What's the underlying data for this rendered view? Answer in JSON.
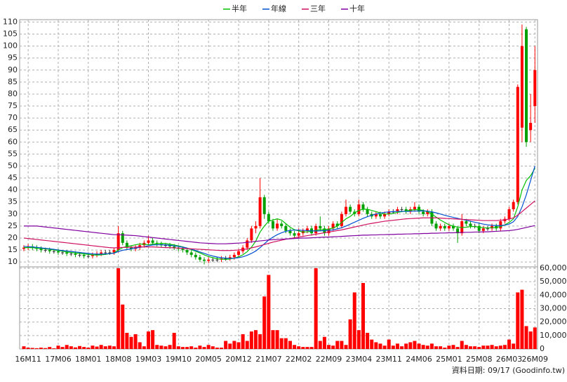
{
  "chart_data": [
    {
      "type": "candlestick",
      "categories": [
        null,
        "16M11",
        null,
        null,
        null,
        null,
        null,
        null,
        "17M06",
        null,
        null,
        null,
        null,
        null,
        null,
        "18M01",
        null,
        null,
        null,
        null,
        null,
        null,
        "18M08",
        null,
        null,
        null,
        null,
        null,
        null,
        "19M03",
        null,
        null,
        null,
        null,
        null,
        null,
        "19M10",
        null,
        null,
        null,
        null,
        null,
        null,
        "20M05",
        null,
        null,
        null,
        null,
        null,
        null,
        "20M12",
        null,
        null,
        null,
        null,
        null,
        null,
        "21M07",
        null,
        null,
        null,
        null,
        null,
        null,
        "22M02",
        null,
        null,
        null,
        null,
        null,
        null,
        "22M09",
        null,
        null,
        null,
        null,
        null,
        null,
        "23M04",
        null,
        null,
        null,
        null,
        null,
        null,
        "23M11",
        null,
        null,
        null,
        null,
        null,
        null,
        "24M06",
        null,
        null,
        null,
        null,
        null,
        null,
        "25M01",
        null,
        null,
        null,
        null,
        null,
        null,
        "25M08",
        null,
        null,
        null,
        null,
        null,
        null,
        "26M03",
        null,
        null,
        null,
        null,
        null,
        "26M09"
      ],
      "open": [
        15.5,
        16,
        16.5,
        16,
        15.5,
        15,
        15,
        14.5,
        14.5,
        14,
        14,
        13.5,
        13.5,
        13,
        13,
        12.5,
        12.5,
        13,
        13.5,
        14,
        14,
        14,
        15,
        22,
        18,
        16,
        15.5,
        16,
        17,
        18,
        19,
        18,
        17.5,
        17,
        17,
        16.5,
        16,
        15.5,
        15,
        14,
        13,
        12,
        11,
        10.5,
        11,
        11,
        11,
        11.5,
        11.5,
        12,
        13,
        14.5,
        16,
        19,
        24,
        25,
        37,
        30,
        27,
        24,
        26,
        25,
        23,
        22,
        21,
        22,
        23,
        24,
        22,
        25,
        24,
        22,
        24,
        26,
        25,
        30,
        33,
        31,
        30,
        34,
        32,
        30,
        29,
        30,
        29,
        30,
        31,
        31,
        32,
        32,
        31,
        32,
        33,
        31,
        30,
        31,
        26,
        24,
        25,
        24,
        25,
        24,
        22,
        27,
        26,
        25,
        25,
        23,
        24,
        24,
        25,
        24,
        27,
        28,
        32,
        35,
        66,
        107,
        65,
        75
      ],
      "high": [
        17,
        17.5,
        17.5,
        17,
        16.5,
        16,
        16,
        15.5,
        15.5,
        15,
        15,
        14.5,
        14.5,
        14,
        14,
        13.5,
        14,
        14.5,
        15,
        15,
        15,
        16,
        25,
        23,
        19,
        17,
        17,
        18,
        19,
        21,
        20,
        19,
        18.5,
        18,
        18,
        17.5,
        17,
        16.5,
        16,
        15,
        14,
        13,
        12,
        12,
        12,
        12,
        12.5,
        12.5,
        13,
        14,
        15.5,
        17,
        20,
        25,
        27,
        45,
        38,
        31,
        28,
        28,
        27,
        26,
        24,
        23,
        24,
        24,
        25,
        25,
        26,
        29,
        25,
        25,
        27,
        27,
        31,
        36,
        34,
        32,
        36,
        35,
        33,
        31,
        31,
        31,
        31,
        32,
        32,
        33,
        33,
        33,
        33,
        35,
        34,
        32,
        32,
        32,
        27,
        26,
        26,
        26,
        26,
        25,
        30,
        28,
        27,
        26,
        26,
        25,
        25,
        26,
        26,
        28,
        29,
        33,
        36,
        84,
        109,
        108,
        80,
        100
      ],
      "low": [
        14.5,
        15,
        15,
        14.5,
        14,
        14,
        13.5,
        13.5,
        13,
        13,
        12.5,
        12.5,
        12,
        12,
        11.5,
        11.5,
        11.5,
        12,
        12.5,
        13,
        13,
        13,
        14,
        17,
        15,
        14.5,
        14.5,
        15,
        16,
        17,
        17,
        16.5,
        16,
        16,
        15.5,
        15,
        14.5,
        14,
        13,
        12,
        11,
        10,
        9,
        9.5,
        10,
        10,
        10,
        10.5,
        10.5,
        11,
        12,
        13.5,
        15,
        18,
        22,
        24,
        28,
        26,
        23,
        23,
        24,
        22,
        21,
        20,
        20,
        21,
        22,
        21,
        21,
        23,
        21,
        21,
        23,
        24,
        24,
        29,
        30,
        29,
        29,
        31,
        29,
        28,
        28,
        28,
        28,
        29,
        30,
        30,
        31,
        30,
        30,
        31,
        30,
        29,
        29,
        25,
        23,
        23,
        23,
        23,
        23,
        18,
        21,
        25,
        24,
        24,
        22,
        22,
        23,
        23,
        23,
        23,
        26,
        27,
        31,
        34,
        60,
        58,
        60,
        68
      ],
      "close": [
        16,
        16.5,
        16,
        15.5,
        15,
        15,
        14.5,
        14.5,
        14,
        14,
        13.5,
        13.5,
        13,
        13,
        12.5,
        12.5,
        13,
        13.5,
        14,
        14,
        14,
        15,
        22,
        18,
        16,
        15.5,
        16,
        17,
        18,
        19,
        18,
        17.5,
        17,
        17,
        16.5,
        16,
        15.5,
        15,
        14,
        13,
        12,
        11,
        10.5,
        11,
        11,
        11,
        11.5,
        11.5,
        12,
        13,
        14.5,
        16,
        19,
        24,
        25,
        37,
        30,
        27,
        24,
        26,
        25,
        23,
        22,
        21,
        22,
        23,
        24,
        22,
        25,
        24,
        22,
        24,
        26,
        25,
        30,
        33,
        31,
        30,
        34,
        32,
        30,
        29,
        30,
        29,
        30,
        31,
        31,
        32,
        32,
        31,
        32,
        33,
        31,
        30,
        31,
        26,
        24,
        25,
        24,
        25,
        24,
        22,
        27,
        26,
        25,
        25,
        23,
        24,
        24,
        25,
        24,
        27,
        28,
        32,
        35,
        83,
        100,
        60,
        68,
        90
      ],
      "up_color": "#ff0000",
      "down_color": "#00a000",
      "series": [
        {
          "name": "半年",
          "color": "#00c000",
          "values": [
            16,
            16,
            16,
            15.8,
            15.7,
            15.5,
            15.3,
            15,
            14.8,
            14.5,
            14.2,
            14,
            13.8,
            13.6,
            13.4,
            13.2,
            13,
            12.9,
            13,
            13.2,
            13.5,
            13.8,
            15,
            16,
            16.5,
            16.8,
            17.2,
            17.5,
            17.4,
            17.2,
            17.5,
            17.6,
            17.8,
            17.7,
            17.4,
            17.1,
            16.7,
            16.3,
            15.8,
            15.2,
            14.5,
            13.8,
            13,
            12.3,
            11.8,
            11.4,
            11.2,
            11.1,
            11.3,
            11.6,
            12.2,
            13,
            14.3,
            16.2,
            18.7,
            22.5,
            25,
            27,
            27.5,
            28,
            27.5,
            26,
            24.5,
            23.5,
            23,
            22.5,
            22.6,
            22.8,
            23.2,
            23.5,
            23.5,
            23.7,
            24.2,
            25,
            26.5,
            28,
            29,
            30.5,
            31.5,
            32,
            32,
            31.5,
            31,
            30.5,
            30,
            30,
            30.3,
            30.7,
            31,
            31.3,
            31.6,
            31.8,
            31.8,
            31.5,
            31,
            30,
            28.7,
            27.5,
            26.5,
            25.5,
            25,
            24.5,
            24.4,
            24.5,
            24.8,
            24.8,
            24.5,
            24.3,
            24.2,
            24.3,
            24.4,
            24.8,
            25.5,
            26.5,
            28,
            33,
            40,
            44,
            46,
            49
          ]
        },
        {
          "name": "年線",
          "color": "#0050d0",
          "values": [
            16.5,
            16.4,
            16.3,
            16.1,
            15.9,
            15.7,
            15.5,
            15.3,
            15,
            14.8,
            14.6,
            14.4,
            14.2,
            14,
            13.8,
            13.6,
            13.4,
            13.3,
            13.3,
            13.4,
            13.5,
            13.7,
            14.4,
            14.9,
            15.2,
            15.5,
            15.8,
            16.1,
            16.4,
            16.8,
            17.1,
            17.2,
            17.2,
            17.1,
            17,
            16.8,
            16.5,
            16.2,
            15.8,
            15.3,
            14.8,
            14.2,
            13.6,
            13,
            12.5,
            12.1,
            11.8,
            11.6,
            11.5,
            11.6,
            11.8,
            12.2,
            12.8,
            13.6,
            14.6,
            16,
            17.6,
            19.2,
            20.4,
            21.4,
            22.2,
            22.8,
            23.2,
            23.3,
            23.3,
            23.2,
            23.1,
            23,
            22.9,
            23,
            23.1,
            23.2,
            23.4,
            23.8,
            24.3,
            25,
            25.8,
            26.6,
            27.4,
            28.2,
            28.9,
            29.5,
            30,
            30.4,
            30.7,
            30.9,
            31,
            31.1,
            31.1,
            31.1,
            31.1,
            31.2,
            31.3,
            31.3,
            31.2,
            30.9,
            30.5,
            30,
            29.5,
            29,
            28.6,
            28.2,
            27.8,
            27.4,
            27,
            26.6,
            26.2,
            25.8,
            25.5,
            25.3,
            25.2,
            25.2,
            25.4,
            25.8,
            26.8,
            29,
            33,
            38,
            44,
            50
          ]
        },
        {
          "name": "三年",
          "color": "#d01060",
          "values": [
            20,
            19.8,
            19.6,
            19.4,
            19.2,
            19,
            18.8,
            18.6,
            18.4,
            18.2,
            18,
            17.8,
            17.6,
            17.4,
            17.2,
            17,
            16.8,
            16.6,
            16.4,
            16.2,
            16,
            15.9,
            16,
            16.1,
            16.1,
            16.2,
            16.2,
            16.3,
            16.3,
            16.3,
            16.3,
            16.2,
            16.1,
            16,
            16,
            15.9,
            15.8,
            15.7,
            15.6,
            15.5,
            15.4,
            15.3,
            15.2,
            15.1,
            15,
            14.9,
            14.8,
            14.8,
            14.8,
            14.9,
            15,
            15.2,
            15.5,
            15.9,
            16.3,
            16.8,
            17.3,
            17.8,
            18.3,
            18.7,
            19.1,
            19.5,
            19.8,
            20.1,
            20.4,
            20.7,
            21,
            21.3,
            21.6,
            21.9,
            22.2,
            22.5,
            22.8,
            23.1,
            23.4,
            23.8,
            24.2,
            24.6,
            25,
            25.4,
            25.8,
            26.1,
            26.4,
            26.7,
            27,
            27.2,
            27.4,
            27.6,
            27.8,
            28,
            28.1,
            28.2,
            28.3,
            28.4,
            28.4,
            28.4,
            28.4,
            28.3,
            28.2,
            28.1,
            28,
            27.9,
            27.8,
            27.7,
            27.6,
            27.5,
            27.4,
            27.3,
            27.3,
            27.3,
            27.3,
            27.4,
            27.6,
            27.9,
            28.4,
            29.5,
            31,
            32.5,
            34,
            35.5
          ]
        },
        {
          "name": "十年",
          "color": "#8000a0",
          "values": [
            25,
            25,
            25,
            25,
            24.8,
            24.6,
            24.4,
            24.2,
            24,
            23.8,
            23.6,
            23.4,
            23.2,
            23,
            22.8,
            22.6,
            22.4,
            22.2,
            22,
            21.8,
            21.6,
            21.4,
            21.4,
            21.3,
            21.2,
            21.1,
            21,
            20.8,
            20.6,
            20.4,
            20.2,
            20,
            19.8,
            19.6,
            19.4,
            19.2,
            19,
            18.8,
            18.6,
            18.4,
            18.2,
            18,
            17.9,
            17.8,
            17.7,
            17.6,
            17.6,
            17.6,
            17.7,
            17.8,
            17.9,
            18,
            18.2,
            18.4,
            18.6,
            18.8,
            19,
            19.2,
            19.3,
            19.4,
            19.5,
            19.6,
            19.7,
            19.8,
            19.9,
            20,
            20,
            20.1,
            20.2,
            20.3,
            20.4,
            20.4,
            20.5,
            20.6,
            20.7,
            20.8,
            20.9,
            21,
            21.1,
            21.2,
            21.2,
            21.3,
            21.3,
            21.4,
            21.4,
            21.5,
            21.5,
            21.6,
            21.6,
            21.7,
            21.7,
            21.8,
            21.8,
            21.9,
            21.9,
            22,
            22,
            22.1,
            22.1,
            22.2,
            22.2,
            22.3,
            22.3,
            22.4,
            22.4,
            22.5,
            22.5,
            22.6,
            22.6,
            22.7,
            22.8,
            22.9,
            23,
            23.1,
            23.3,
            23.6,
            24,
            24.4,
            24.8,
            25.2
          ]
        }
      ],
      "ylim": [
        8,
        111
      ],
      "yticks": [
        10,
        15,
        20,
        25,
        30,
        35,
        40,
        45,
        50,
        55,
        60,
        65,
        70,
        75,
        80,
        85,
        90,
        95,
        100,
        105,
        110
      ],
      "grid": true
    },
    {
      "type": "bar",
      "color": "#ff0000",
      "values": [
        2000,
        1000,
        800,
        600,
        1000,
        700,
        1500,
        500,
        2500,
        1500,
        3000,
        2000,
        1200,
        2200,
        1500,
        1000,
        2500,
        1800,
        3000,
        2000,
        2500,
        2000,
        60000,
        33000,
        12000,
        9000,
        11000,
        5000,
        2000,
        13000,
        14000,
        3000,
        2500,
        2000,
        3000,
        12000,
        2000,
        1500,
        1500,
        2000,
        1000,
        2500,
        1500,
        3000,
        2000,
        1000,
        1000,
        6000,
        4000,
        6000,
        5000,
        11000,
        6000,
        13000,
        14000,
        11000,
        39000,
        55000,
        14000,
        14000,
        8000,
        8000,
        6000,
        3000,
        2000,
        1500,
        1500,
        1500,
        60000,
        6000,
        9000,
        3000,
        2500,
        6000,
        6000,
        3000,
        22000,
        42000,
        14000,
        49000,
        12000,
        7000,
        5000,
        4000,
        2500,
        7000,
        2500,
        4000,
        2000,
        4000,
        5000,
        6000,
        4000,
        3000,
        2500,
        4000,
        2000,
        2000,
        1000,
        2500,
        3000,
        1500,
        6000,
        3000,
        2000,
        2000,
        1500,
        2500,
        2500,
        3000,
        2000,
        2500,
        3000,
        7000,
        4000,
        42000,
        44000,
        17000,
        13000,
        16000
      ],
      "ylim": [
        0,
        61000
      ],
      "yticks": [
        0,
        {
          "value": 10000,
          "label": "10,000"
        },
        {
          "value": 20000,
          "label": "20,000"
        },
        {
          "value": 30000,
          "label": "30,000"
        },
        {
          "value": 40000,
          "label": "40,000"
        },
        {
          "value": 50000,
          "label": "50,000"
        },
        {
          "value": 60000,
          "label": "60,000"
        }
      ],
      "grid": true
    }
  ],
  "footer": "資料日期: 09/17 (Goodinfo.tw)"
}
